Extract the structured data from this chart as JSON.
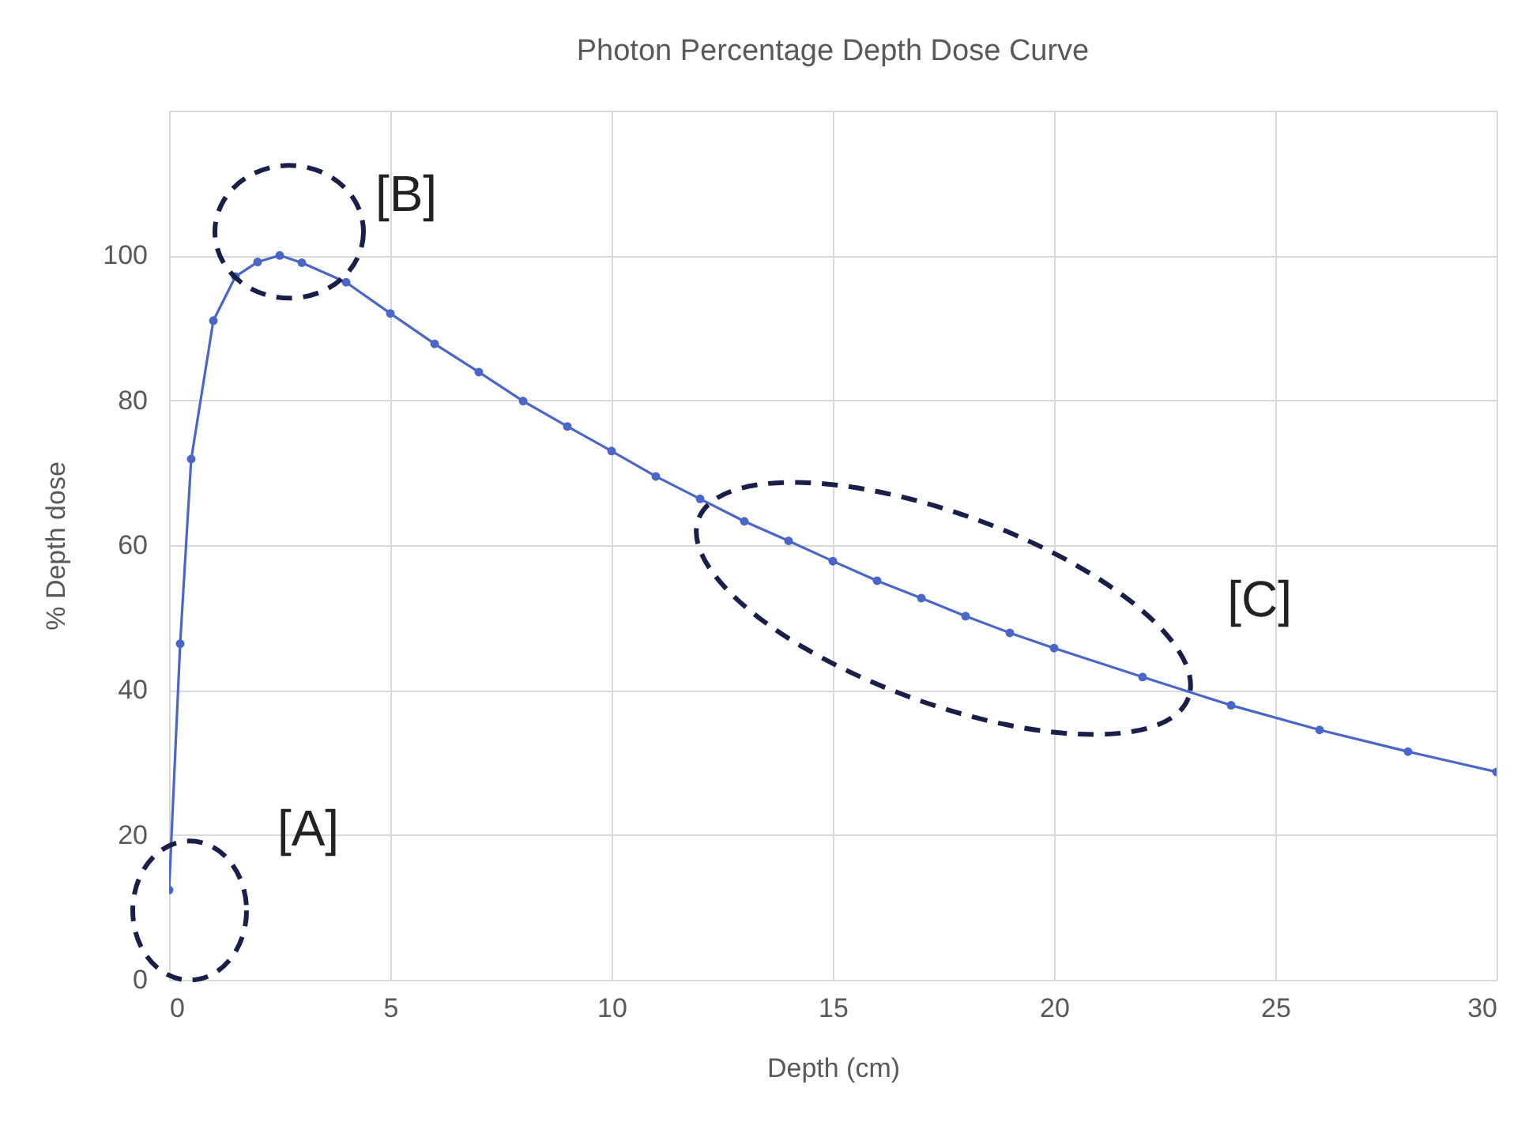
{
  "chart_data": {
    "type": "line",
    "title": "Photon Percentage Depth Dose Curve",
    "xlabel": "Depth (cm)",
    "ylabel": "% Depth dose",
    "x": [
      0,
      0.25,
      0.5,
      1,
      1.5,
      2,
      2.5,
      3,
      4,
      5,
      6,
      7,
      8,
      9,
      10,
      11,
      12,
      13,
      14,
      15,
      16,
      17,
      18,
      19,
      20,
      22,
      24,
      26,
      28,
      30
    ],
    "series": [
      {
        "color": "#4a66c8",
        "values": [
          12.4,
          46.4,
          71.9,
          91,
          97.1,
          99.1,
          100,
          99,
          96.3,
          92,
          87.8,
          83.9,
          79.9,
          76.4,
          73,
          69.5,
          66.4,
          63.3,
          60.6,
          57.8,
          55.1,
          52.7,
          50.2,
          47.9,
          45.8,
          41.8,
          37.9,
          34.5,
          31.5,
          28.7
        ]
      }
    ],
    "xlim": [
      0,
      30
    ],
    "xticks": [
      0,
      5,
      10,
      15,
      20,
      25,
      30
    ],
    "ylim": [
      0,
      120
    ],
    "yticks": [
      0,
      20,
      40,
      60,
      80,
      100,
      {
        "value": 120,
        "label": null
      }
    ],
    "grid": true,
    "marker": "circle",
    "line_style": "solid",
    "annotations": [
      {
        "text": "[A]",
        "x": 0,
        "y": 12.4
      },
      {
        "text": "[B]",
        "x": 2.5,
        "y": 100
      },
      "[C]"
    ]
  }
}
